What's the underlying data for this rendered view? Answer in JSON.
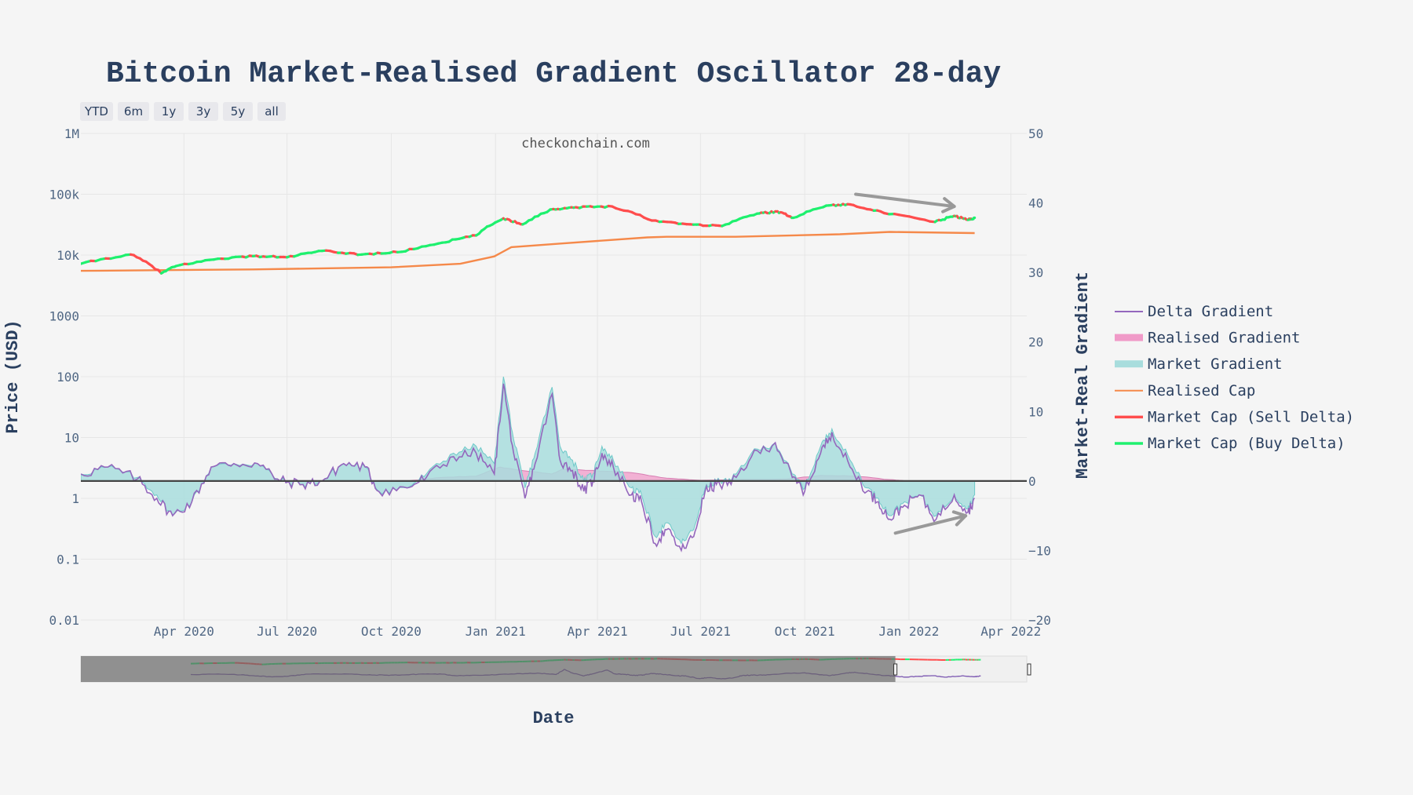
{
  "chart_data": {
    "type": "line",
    "title": "Bitcoin Market-Realised Gradient Oscillator 28-day",
    "watermark": "checkonchain.com",
    "xlabel": "Date",
    "ylabel_left": "Price (USD)",
    "ylabel_right": "Market-Real Gradient",
    "x_range": [
      "2020-01-01",
      "2022-04-15"
    ],
    "x_tick_labels": [
      "Apr 2020",
      "Jul 2020",
      "Oct 2020",
      "Jan 2021",
      "Apr 2021",
      "Jul 2021",
      "Oct 2021",
      "Jan 2022",
      "Apr 2022"
    ],
    "x_tick_dates": [
      "2020-04-01",
      "2020-07-01",
      "2020-10-01",
      "2021-01-01",
      "2021-04-01",
      "2021-07-01",
      "2021-10-01",
      "2022-01-01",
      "2022-04-01"
    ],
    "y_left_scale": "log",
    "y_left_range": [
      0.01,
      1000000
    ],
    "y_left_tick_values": [
      0.01,
      0.1,
      1,
      10,
      100,
      1000,
      10000,
      100000,
      1000000
    ],
    "y_left_tick_labels": [
      "0.01",
      "0.1",
      "1",
      "10",
      "100",
      "1000",
      "10k",
      "100k",
      "1M"
    ],
    "y_right_range": [
      -20,
      50
    ],
    "y_right_tick_values": [
      -20,
      -10,
      0,
      10,
      20,
      30,
      40,
      50
    ],
    "y_right_tick_labels": [
      "−20",
      "−10",
      "0",
      "10",
      "20",
      "30",
      "40",
      "50"
    ],
    "range_buttons": [
      "YTD",
      "6m",
      "1y",
      "3y",
      "5y",
      "all"
    ],
    "legend": [
      {
        "name": "Delta Gradient",
        "color": "#9467bd",
        "kind": "line"
      },
      {
        "name": "Realised Gradient",
        "color": "#f09ac8",
        "kind": "area"
      },
      {
        "name": "Market Gradient",
        "color": "#a8dddd",
        "kind": "area"
      },
      {
        "name": "Realised Cap",
        "color": "#f5894a",
        "kind": "line"
      },
      {
        "name": "Market Cap (Sell Delta)",
        "color": "#ff4d4d",
        "kind": "line"
      },
      {
        "name": "Market Cap (Buy Delta)",
        "color": "#1ef06e",
        "kind": "line"
      }
    ],
    "series": [
      {
        "name": "Market Cap",
        "axis": "left",
        "note": "price in USD, green when delta gradient > 0, red when < 0",
        "points": [
          [
            "2020-01-01",
            7200
          ],
          [
            "2020-02-14",
            10200
          ],
          [
            "2020-03-12",
            5000
          ],
          [
            "2020-03-25",
            6600
          ],
          [
            "2020-05-01",
            8700
          ],
          [
            "2020-06-01",
            9600
          ],
          [
            "2020-07-01",
            9200
          ],
          [
            "2020-08-01",
            11700
          ],
          [
            "2020-09-05",
            10200
          ],
          [
            "2020-10-10",
            11300
          ],
          [
            "2020-11-15",
            16000
          ],
          [
            "2020-12-15",
            21000
          ],
          [
            "2021-01-08",
            40000
          ],
          [
            "2021-01-25",
            32000
          ],
          [
            "2021-02-21",
            57000
          ],
          [
            "2021-03-13",
            61000
          ],
          [
            "2021-04-14",
            63000
          ],
          [
            "2021-05-19",
            37000
          ],
          [
            "2021-06-22",
            32000
          ],
          [
            "2021-07-20",
            30000
          ],
          [
            "2021-08-20",
            48000
          ],
          [
            "2021-09-07",
            52000
          ],
          [
            "2021-09-21",
            41000
          ],
          [
            "2021-10-20",
            65000
          ],
          [
            "2021-11-10",
            68000
          ],
          [
            "2021-12-10",
            49000
          ],
          [
            "2022-01-24",
            35000
          ],
          [
            "2022-02-10",
            44000
          ],
          [
            "2022-02-22",
            38000
          ],
          [
            "2022-02-28",
            41000
          ]
        ]
      },
      {
        "name": "Realised Cap",
        "axis": "left",
        "note": "realised price in USD",
        "points": [
          [
            "2020-01-01",
            5500
          ],
          [
            "2020-06-01",
            5800
          ],
          [
            "2020-10-01",
            6300
          ],
          [
            "2020-12-01",
            7200
          ],
          [
            "2020-12-31",
            9500
          ],
          [
            "2021-01-15",
            13500
          ],
          [
            "2021-03-01",
            15500
          ],
          [
            "2021-05-15",
            19500
          ],
          [
            "2021-06-01",
            20000
          ],
          [
            "2021-08-01",
            20000
          ],
          [
            "2021-11-01",
            22000
          ],
          [
            "2021-12-15",
            24000
          ],
          [
            "2022-02-28",
            23000
          ]
        ]
      },
      {
        "name": "Market Gradient",
        "axis": "right",
        "points": [
          [
            "2020-01-01",
            1
          ],
          [
            "2020-01-25",
            2
          ],
          [
            "2020-02-20",
            0.5
          ],
          [
            "2020-03-08",
            -2
          ],
          [
            "2020-03-22",
            -5
          ],
          [
            "2020-04-08",
            -3
          ],
          [
            "2020-04-25",
            2
          ],
          [
            "2020-05-15",
            2.5
          ],
          [
            "2020-06-05",
            2.5
          ],
          [
            "2020-06-25",
            0
          ],
          [
            "2020-07-15",
            -0.5
          ],
          [
            "2020-08-01",
            0
          ],
          [
            "2020-08-20",
            2.5
          ],
          [
            "2020-09-08",
            2
          ],
          [
            "2020-09-20",
            -1.5
          ],
          [
            "2020-10-15",
            -1
          ],
          [
            "2020-11-01",
            1
          ],
          [
            "2020-11-25",
            4
          ],
          [
            "2020-12-15",
            5
          ],
          [
            "2020-12-31",
            2.5
          ],
          [
            "2021-01-08",
            15
          ],
          [
            "2021-01-17",
            6
          ],
          [
            "2021-01-27",
            -1
          ],
          [
            "2021-02-05",
            4
          ],
          [
            "2021-02-20",
            13.5
          ],
          [
            "2021-02-27",
            5
          ],
          [
            "2021-03-10",
            3
          ],
          [
            "2021-03-20",
            0
          ],
          [
            "2021-03-28",
            1
          ],
          [
            "2021-04-05",
            5
          ],
          [
            "2021-04-15",
            3
          ],
          [
            "2021-05-01",
            -1
          ],
          [
            "2021-05-10",
            -2
          ],
          [
            "2021-05-22",
            -8
          ],
          [
            "2021-06-01",
            -6
          ],
          [
            "2021-06-14",
            -9
          ],
          [
            "2021-06-25",
            -7
          ],
          [
            "2021-07-05",
            -1
          ],
          [
            "2021-07-15",
            0
          ],
          [
            "2021-07-28",
            0
          ],
          [
            "2021-08-15",
            4
          ],
          [
            "2021-09-05",
            5.5
          ],
          [
            "2021-09-20",
            1
          ],
          [
            "2021-10-01",
            -1
          ],
          [
            "2021-10-15",
            5
          ],
          [
            "2021-10-25",
            7.5
          ],
          [
            "2021-11-10",
            3
          ],
          [
            "2021-11-25",
            -1
          ],
          [
            "2021-12-05",
            -2.5
          ],
          [
            "2021-12-15",
            -5
          ],
          [
            "2021-12-28",
            -3
          ],
          [
            "2022-01-10",
            -2
          ],
          [
            "2022-01-25",
            -5
          ],
          [
            "2022-02-10",
            -2
          ],
          [
            "2022-02-22",
            -4
          ],
          [
            "2022-02-28",
            -2
          ]
        ]
      },
      {
        "name": "Realised Gradient",
        "axis": "right",
        "points": [
          [
            "2020-01-01",
            0
          ],
          [
            "2020-10-15",
            0
          ],
          [
            "2020-11-15",
            0.5
          ],
          [
            "2020-12-15",
            0.7
          ],
          [
            "2021-01-05",
            2
          ],
          [
            "2021-01-25",
            1.5
          ],
          [
            "2021-02-20",
            1
          ],
          [
            "2021-03-01",
            1.7
          ],
          [
            "2021-04-10",
            1.4
          ],
          [
            "2021-05-01",
            1.2
          ],
          [
            "2021-06-01",
            0.4
          ],
          [
            "2021-07-01",
            0.1
          ],
          [
            "2021-09-15",
            0.3
          ],
          [
            "2021-10-15",
            0.8
          ],
          [
            "2021-11-15",
            0.7
          ],
          [
            "2021-12-15",
            0.2
          ],
          [
            "2022-01-01",
            0
          ],
          [
            "2022-02-28",
            0
          ]
        ]
      },
      {
        "name": "Delta Gradient",
        "axis": "right",
        "points": [
          [
            "2020-01-01",
            1
          ],
          [
            "2020-01-25",
            2
          ],
          [
            "2020-02-20",
            0.3
          ],
          [
            "2020-03-08",
            -2.5
          ],
          [
            "2020-03-22",
            -5
          ],
          [
            "2020-04-08",
            -3
          ],
          [
            "2020-04-25",
            2
          ],
          [
            "2020-05-15",
            2.5
          ],
          [
            "2020-06-05",
            2.5
          ],
          [
            "2020-06-25",
            0
          ],
          [
            "2020-07-15",
            -0.5
          ],
          [
            "2020-08-01",
            0
          ],
          [
            "2020-08-20",
            2.5
          ],
          [
            "2020-09-08",
            2
          ],
          [
            "2020-09-20",
            -1.5
          ],
          [
            "2020-10-15",
            -1
          ],
          [
            "2020-11-01",
            0.5
          ],
          [
            "2020-11-25",
            3.5
          ],
          [
            "2020-12-15",
            4
          ],
          [
            "2020-12-31",
            1
          ],
          [
            "2021-01-08",
            14
          ],
          [
            "2021-01-17",
            4
          ],
          [
            "2021-01-27",
            -2.5
          ],
          [
            "2021-02-05",
            2.5
          ],
          [
            "2021-02-20",
            12.5
          ],
          [
            "2021-02-27",
            3
          ],
          [
            "2021-03-10",
            1.5
          ],
          [
            "2021-03-20",
            -1.5
          ],
          [
            "2021-03-28",
            0
          ],
          [
            "2021-04-05",
            4
          ],
          [
            "2021-04-15",
            2
          ],
          [
            "2021-05-01",
            -2
          ],
          [
            "2021-05-10",
            -3
          ],
          [
            "2021-05-22",
            -9
          ],
          [
            "2021-06-01",
            -7
          ],
          [
            "2021-06-14",
            -10
          ],
          [
            "2021-06-25",
            -8
          ],
          [
            "2021-07-05",
            -1.5
          ],
          [
            "2021-07-15",
            -0.5
          ],
          [
            "2021-07-28",
            -0.5
          ],
          [
            "2021-08-15",
            3.5
          ],
          [
            "2021-09-05",
            5.5
          ],
          [
            "2021-09-20",
            0.5
          ],
          [
            "2021-10-01",
            -1.5
          ],
          [
            "2021-10-15",
            4
          ],
          [
            "2021-10-25",
            7
          ],
          [
            "2021-11-10",
            2
          ],
          [
            "2021-11-25",
            -1.5
          ],
          [
            "2021-12-05",
            -3
          ],
          [
            "2021-12-15",
            -5.5
          ],
          [
            "2021-12-28",
            -3.5
          ],
          [
            "2022-01-10",
            -2
          ],
          [
            "2022-01-25",
            -5.5
          ],
          [
            "2022-02-10",
            -2
          ],
          [
            "2022-02-22",
            -4.5
          ],
          [
            "2022-02-28",
            -2.5
          ]
        ]
      }
    ],
    "annotations": [
      {
        "type": "arrow",
        "label": "price-downtrend-arrow",
        "from": [
          "2021-11-15",
          100000
        ],
        "to": [
          "2022-02-10",
          63000
        ]
      },
      {
        "type": "arrow",
        "label": "gradient-uptrend-arrow",
        "from": [
          "2021-12-20",
          -7.5
        ],
        "to": [
          "2022-02-20",
          -5
        ]
      }
    ],
    "rangeslider": {
      "selected_to": "2021-12-20"
    }
  }
}
